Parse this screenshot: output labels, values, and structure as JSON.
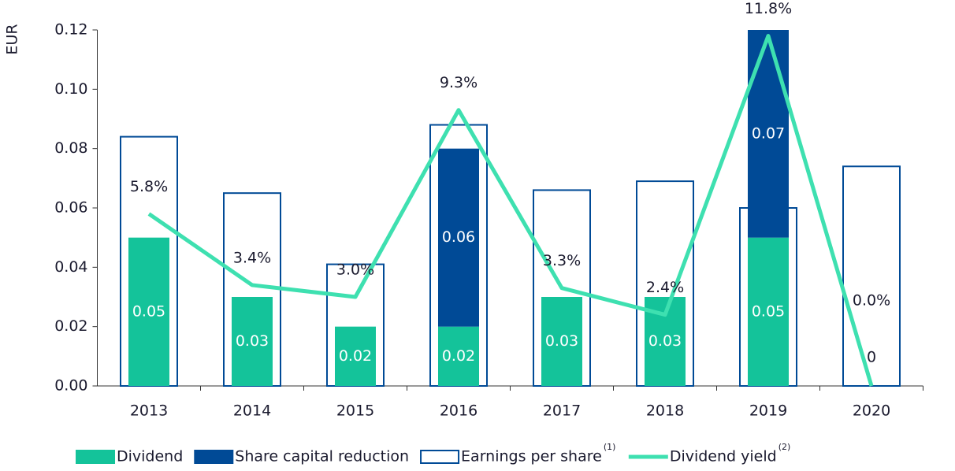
{
  "chart_data": {
    "type": "bar",
    "y_axis_label": "EUR",
    "categories": [
      "2013",
      "2014",
      "2015",
      "2016",
      "2017",
      "2018",
      "2019",
      "2020"
    ],
    "series": [
      {
        "name": "Dividend",
        "type": "stacked-bar",
        "color": "#14c39a",
        "values": [
          0.05,
          0.03,
          0.02,
          0.02,
          0.03,
          0.03,
          0.05,
          0
        ]
      },
      {
        "name": "Share capital reduction",
        "type": "stacked-bar",
        "color": "#004a96",
        "values": [
          null,
          null,
          null,
          0.06,
          null,
          null,
          0.07,
          null
        ]
      },
      {
        "name": "Earnings per share",
        "note": "(1)",
        "type": "outline-bar",
        "color": "#004a96",
        "values": [
          0.084,
          0.065,
          0.041,
          0.088,
          0.066,
          0.069,
          0.06,
          0.074
        ]
      },
      {
        "name": "Dividend yield",
        "note": "(2)",
        "type": "line",
        "axis": "y2",
        "color": "#3ee0b0",
        "values": [
          5.8,
          3.4,
          3.0,
          9.3,
          3.3,
          2.4,
          11.8,
          0.0
        ],
        "value_labels": [
          "5.8%",
          "3.4%",
          "3.0%",
          "9.3%",
          "3.3%",
          "2.4%",
          "11.8%",
          "0.0%"
        ]
      }
    ],
    "ylim": [
      0,
      0.12
    ],
    "yticks": [
      {
        "value": 0,
        "label": "0.00"
      },
      0.02,
      0.04,
      0.06,
      0.08,
      {
        "value": 0.1,
        "label": "0.10"
      },
      0.12
    ],
    "y2lim": [
      0,
      12
    ],
    "legend": "bottom"
  }
}
